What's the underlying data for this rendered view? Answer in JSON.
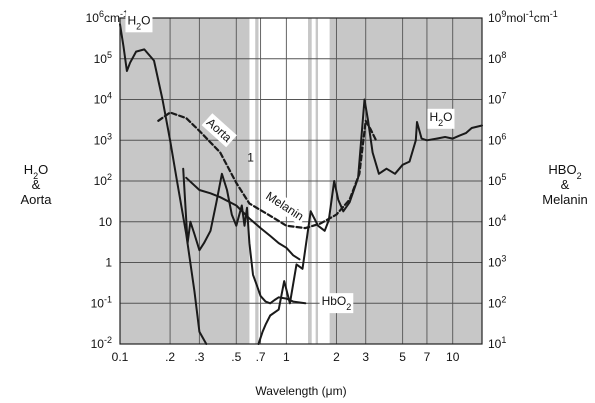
{
  "chart_data": {
    "type": "line",
    "xlabel": "Wavelength (μm)",
    "x_scale": "log",
    "y_scale": "log",
    "xlim": [
      0.1,
      15
    ],
    "ylim": [
      0.01,
      1000000
    ],
    "x_ticks": [
      {
        "value": 0.1,
        "label": "0.1"
      },
      {
        "value": 0.2,
        "label": ".2"
      },
      {
        "value": 0.3,
        "label": ".3"
      },
      {
        "value": 0.5,
        "label": ".5"
      },
      {
        "value": 0.7,
        "label": ".7"
      },
      {
        "value": 1,
        "label": "1"
      },
      {
        "value": 2,
        "label": "2"
      },
      {
        "value": 3,
        "label": "3"
      },
      {
        "value": 5,
        "label": "5"
      },
      {
        "value": 7,
        "label": "7"
      },
      {
        "value": 10,
        "label": "10"
      }
    ],
    "y_ticks_left": [
      {
        "value": 1000000,
        "base": "10",
        "exp": "6",
        "suffix": "cm",
        "suffix_exp": "-1"
      },
      {
        "value": 100000,
        "base": "10",
        "exp": "5"
      },
      {
        "value": 10000,
        "base": "10",
        "exp": "4"
      },
      {
        "value": 1000,
        "base": "10",
        "exp": "3"
      },
      {
        "value": 100,
        "base": "10",
        "exp": "2"
      },
      {
        "value": 10,
        "base": "10",
        "exp": ""
      },
      {
        "value": 1,
        "base": "1",
        "exp": ""
      },
      {
        "value": 0.1,
        "base": "10",
        "exp": "-1"
      },
      {
        "value": 0.01,
        "base": "10",
        "exp": "-2"
      }
    ],
    "y_ticks_right": [
      {
        "value": 1000000,
        "base": "10",
        "exp": "9",
        "suffix": "mol",
        "suffix_exp": "-1",
        "suffix2": "cm",
        "suffix2_exp": "-1"
      },
      {
        "value": 100000,
        "base": "10",
        "exp": "8"
      },
      {
        "value": 10000,
        "base": "10",
        "exp": "7"
      },
      {
        "value": 1000,
        "base": "10",
        "exp": "6"
      },
      {
        "value": 100,
        "base": "10",
        "exp": "5"
      },
      {
        "value": 10,
        "base": "10",
        "exp": "4"
      },
      {
        "value": 1,
        "base": "10",
        "exp": "3"
      },
      {
        "value": 0.1,
        "base": "10",
        "exp": "2"
      },
      {
        "value": 0.01,
        "base": "10",
        "exp": "1"
      }
    ],
    "left_axis_label": [
      "H2O",
      "&",
      "Aorta"
    ],
    "right_axis_label": [
      "HBO2",
      "&",
      "Melanin"
    ],
    "shaded_bands": [
      [
        0.1,
        0.6
      ],
      [
        0.65,
        0.68
      ],
      [
        1.35,
        1.42
      ],
      [
        1.5,
        1.55
      ],
      [
        1.82,
        15
      ]
    ],
    "grid": true,
    "legend": "none",
    "series": [
      {
        "name": "H2O",
        "style": "solid",
        "points": [
          [
            0.1,
            700000
          ],
          [
            0.105,
            200000
          ],
          [
            0.11,
            50000
          ],
          [
            0.115,
            80000
          ],
          [
            0.125,
            150000
          ],
          [
            0.14,
            170000
          ],
          [
            0.16,
            90000
          ],
          [
            0.18,
            10000
          ],
          [
            0.2,
            1000
          ],
          [
            0.22,
            100
          ],
          [
            0.25,
            5
          ],
          [
            0.28,
            0.2
          ],
          [
            0.3,
            0.02
          ],
          [
            0.33,
            0.005
          ]
        ]
      },
      {
        "name": "H2O",
        "style": "solid",
        "points": [
          [
            0.68,
            0.005
          ],
          [
            0.72,
            0.02
          ],
          [
            0.75,
            0.03
          ],
          [
            0.8,
            0.05
          ],
          [
            0.9,
            0.07
          ],
          [
            0.97,
            0.35
          ],
          [
            1.05,
            0.1
          ],
          [
            1.15,
            0.9
          ],
          [
            1.25,
            0.7
          ],
          [
            1.4,
            18
          ],
          [
            1.55,
            8
          ],
          [
            1.7,
            6
          ],
          [
            1.8,
            11
          ],
          [
            1.94,
            100
          ],
          [
            2.05,
            35
          ],
          [
            2.2,
            18
          ],
          [
            2.4,
            30
          ],
          [
            2.7,
            120
          ],
          [
            2.95,
            10000
          ],
          [
            3.1,
            3000
          ],
          [
            3.3,
            500
          ],
          [
            3.6,
            150
          ],
          [
            4.0,
            200
          ],
          [
            4.5,
            150
          ],
          [
            5.0,
            250
          ],
          [
            5.5,
            300
          ],
          [
            6.0,
            1000
          ],
          [
            6.1,
            2800
          ],
          [
            6.5,
            1100
          ],
          [
            7,
            1000
          ],
          [
            8,
            1100
          ],
          [
            9,
            1200
          ],
          [
            10,
            1100
          ],
          [
            11,
            1300
          ],
          [
            12,
            1500
          ],
          [
            13,
            2000
          ],
          [
            15,
            2300
          ]
        ]
      },
      {
        "name": "Aorta",
        "style": "dashed",
        "points": [
          [
            0.17,
            3000
          ],
          [
            0.2,
            4800
          ],
          [
            0.25,
            3500
          ],
          [
            0.3,
            1700
          ],
          [
            0.4,
            500
          ],
          [
            0.5,
            90
          ],
          [
            0.6,
            28
          ],
          [
            0.8,
            14
          ],
          [
            1.0,
            8
          ],
          [
            1.3,
            7
          ],
          [
            1.6,
            9
          ],
          [
            2.0,
            15
          ],
          [
            2.4,
            35
          ],
          [
            2.75,
            150
          ],
          [
            3.0,
            3000
          ],
          [
            3.2,
            1900
          ],
          [
            3.5,
            900
          ]
        ]
      },
      {
        "name": "Melanin",
        "style": "solid",
        "points": [
          [
            0.25,
            120
          ],
          [
            0.3,
            60
          ],
          [
            0.35,
            50
          ],
          [
            0.4,
            40
          ],
          [
            0.5,
            25
          ],
          [
            0.6,
            12
          ],
          [
            0.7,
            7
          ],
          [
            0.8,
            4.5
          ],
          [
            0.9,
            3
          ],
          [
            1.0,
            2.3
          ],
          [
            1.1,
            1.5
          ],
          [
            1.2,
            1.2
          ]
        ]
      },
      {
        "name": "HbO2",
        "style": "solid",
        "points": [
          [
            0.24,
            200
          ],
          [
            0.255,
            3
          ],
          [
            0.265,
            10
          ],
          [
            0.28,
            5
          ],
          [
            0.3,
            2
          ],
          [
            0.32,
            3
          ],
          [
            0.35,
            6
          ],
          [
            0.38,
            30
          ],
          [
            0.41,
            150
          ],
          [
            0.44,
            60
          ],
          [
            0.47,
            15
          ],
          [
            0.5,
            8
          ],
          [
            0.54,
            25
          ],
          [
            0.56,
            8
          ],
          [
            0.58,
            22
          ],
          [
            0.6,
            3
          ],
          [
            0.63,
            0.5
          ],
          [
            0.66,
            0.3
          ],
          [
            0.7,
            0.15
          ],
          [
            0.75,
            0.11
          ],
          [
            0.8,
            0.1
          ],
          [
            0.85,
            0.12
          ],
          [
            0.9,
            0.14
          ],
          [
            1.0,
            0.13
          ],
          [
            1.1,
            0.11
          ],
          [
            1.3,
            0.1
          ]
        ]
      }
    ],
    "annotations": [
      {
        "text": "H2O",
        "x": 0.13,
        "y": 700000
      },
      {
        "text": "H2O",
        "x": 8.5,
        "y": 3000
      },
      {
        "text": "Aorta",
        "x": 0.38,
        "y": 1500
      },
      {
        "text": "Melanin",
        "x": 0.95,
        "y": 20
      },
      {
        "text": "HbO2",
        "x": 2.0,
        "y": 0.09
      },
      {
        "text": "1",
        "x": 0.61,
        "y": 300
      }
    ]
  }
}
